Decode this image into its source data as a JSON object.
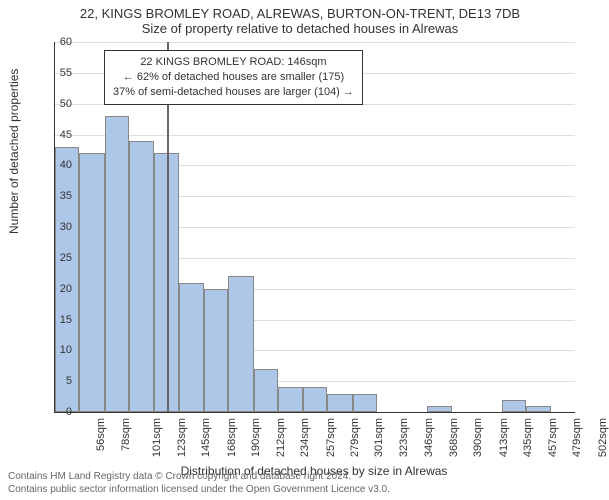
{
  "titles": {
    "main": "22, KINGS BROMLEY ROAD, ALREWAS, BURTON-ON-TRENT, DE13 7DB",
    "sub": "Size of property relative to detached houses in Alrewas"
  },
  "chart": {
    "type": "bar",
    "ylabel": "Number of detached properties",
    "xlabel": "Distribution of detached houses by size in Alrewas",
    "ylim": [
      0,
      60
    ],
    "ytick_step": 5,
    "xlim": [
      45,
      513
    ],
    "xticks": [
      56,
      78,
      101,
      123,
      145,
      168,
      190,
      212,
      234,
      257,
      279,
      301,
      323,
      346,
      368,
      390,
      413,
      435,
      457,
      479,
      502
    ],
    "xtick_suffix": "sqm",
    "bar_color": "#aec7e8",
    "bar_border_color": "#888888",
    "grid_color": "#dddddd",
    "background_color": "#ffffff",
    "text_color": "#333333",
    "marker_color": "#666666",
    "marker_x": 146,
    "bars": [
      {
        "x0": 45,
        "x1": 67,
        "y": 43
      },
      {
        "x0": 67,
        "x1": 90,
        "y": 42
      },
      {
        "x0": 90,
        "x1": 112,
        "y": 48
      },
      {
        "x0": 112,
        "x1": 134,
        "y": 44
      },
      {
        "x0": 134,
        "x1": 157,
        "y": 42
      },
      {
        "x0": 157,
        "x1": 179,
        "y": 21
      },
      {
        "x0": 179,
        "x1": 201,
        "y": 20
      },
      {
        "x0": 201,
        "x1": 224,
        "y": 22
      },
      {
        "x0": 224,
        "x1": 246,
        "y": 7
      },
      {
        "x0": 246,
        "x1": 268,
        "y": 4
      },
      {
        "x0": 268,
        "x1": 290,
        "y": 4
      },
      {
        "x0": 290,
        "x1": 313,
        "y": 3
      },
      {
        "x0": 313,
        "x1": 335,
        "y": 3
      },
      {
        "x0": 335,
        "x1": 357,
        "y": 0
      },
      {
        "x0": 357,
        "x1": 380,
        "y": 0
      },
      {
        "x0": 380,
        "x1": 402,
        "y": 1
      },
      {
        "x0": 402,
        "x1": 424,
        "y": 0
      },
      {
        "x0": 424,
        "x1": 447,
        "y": 0
      },
      {
        "x0": 447,
        "x1": 469,
        "y": 2
      },
      {
        "x0": 469,
        "x1": 491,
        "y": 1
      },
      {
        "x0": 491,
        "x1": 513,
        "y": 0
      }
    ]
  },
  "annotation": {
    "line1": "22 KINGS BROMLEY ROAD: 146sqm",
    "line2": "← 62% of detached houses are smaller (175)",
    "line3": "37% of semi-detached houses are larger (104) →"
  },
  "footer": {
    "line1": "Contains HM Land Registry data © Crown copyright and database right 2024.",
    "line2": "Contains public sector information licensed under the Open Government Licence v3.0."
  }
}
